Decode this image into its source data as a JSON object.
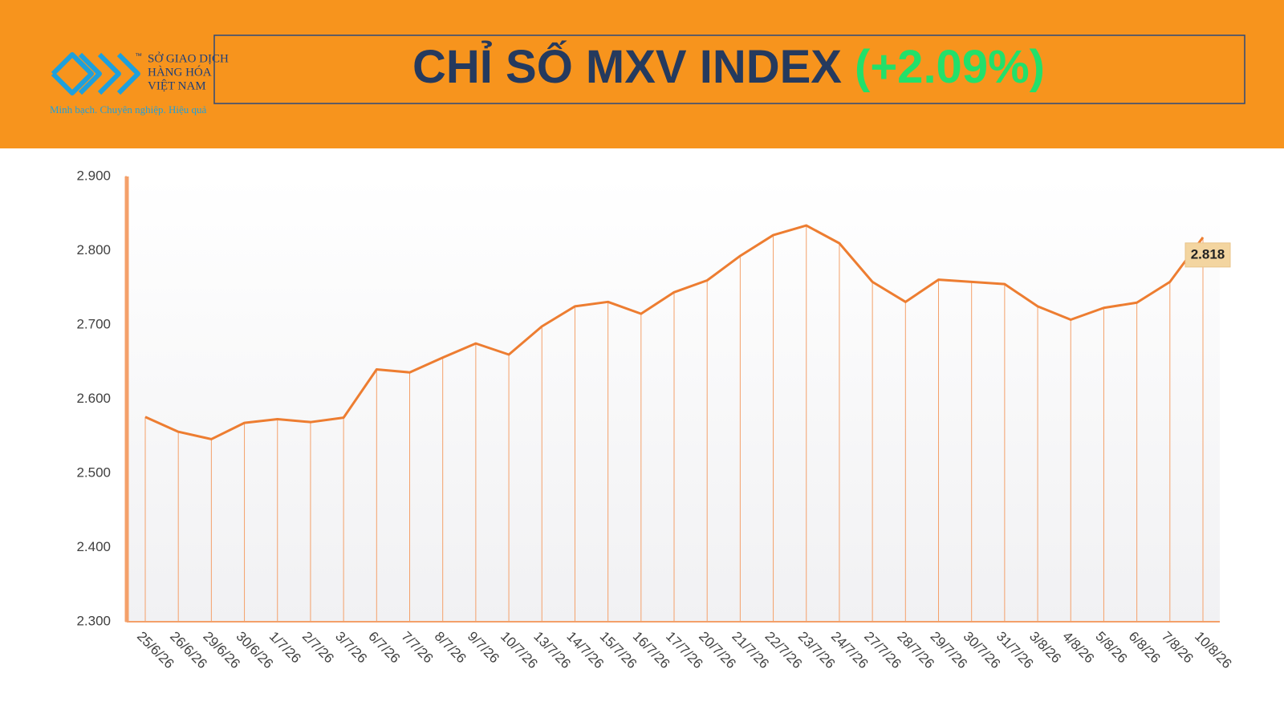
{
  "header": {
    "logo": {
      "line1": "SỞ GIAO DỊCH",
      "line2": "HÀNG HÓA",
      "line3": "VIỆT NAM",
      "tm": "™",
      "slogan": "Minh bạch. Chuyên nghiệp. Hiệu quả"
    },
    "title": "CHỈ SỐ MXV INDEX",
    "change": "(+2.09%)"
  },
  "chart_data": {
    "type": "line",
    "color": "#ed7d31",
    "categories": [
      "25/6/26",
      "26/6/26",
      "29/6/26",
      "30/6/26",
      "1/7/26",
      "2/7/26",
      "3/7/26",
      "6/7/26",
      "7/7/26",
      "8/7/26",
      "9/7/26",
      "10/7/26",
      "13/7/26",
      "14/7/26",
      "15/7/26",
      "16/7/26",
      "17/7/26",
      "20/7/26",
      "21/7/26",
      "22/7/26",
      "23/7/26",
      "24/7/26",
      "27/7/26",
      "28/7/26",
      "29/7/26",
      "30/7/26",
      "31/7/26",
      "3/8/26",
      "4/8/26",
      "5/8/26",
      "6/8/26",
      "7/8/26",
      "10/8/26"
    ],
    "values": [
      2576,
      2556,
      2546,
      2568,
      2573,
      2569,
      2575,
      2640,
      2636,
      2656,
      2675,
      2660,
      2698,
      2725,
      2731,
      2715,
      2744,
      2760,
      2793,
      2821,
      2834,
      2810,
      2758,
      2731,
      2761,
      2758,
      2755,
      2725,
      2707,
      2723,
      2730,
      2758,
      2818
    ],
    "value_labels": [
      null,
      null,
      null,
      null,
      null,
      null,
      null,
      null,
      null,
      null,
      null,
      null,
      null,
      null,
      null,
      null,
      null,
      null,
      null,
      null,
      null,
      null,
      null,
      null,
      null,
      null,
      null,
      null,
      null,
      null,
      null,
      null,
      "2.818"
    ],
    "ylim": [
      2300,
      2900
    ],
    "yticks": [
      {
        "value": 2300,
        "label": "2.300"
      },
      {
        "value": 2400,
        "label": "2.400"
      },
      {
        "value": 2500,
        "label": "2.500"
      },
      {
        "value": 2600,
        "label": "2.600"
      },
      {
        "value": 2700,
        "label": "2.700"
      },
      {
        "value": 2800,
        "label": "2.800"
      },
      {
        "value": 2900,
        "label": "2.900"
      }
    ]
  }
}
